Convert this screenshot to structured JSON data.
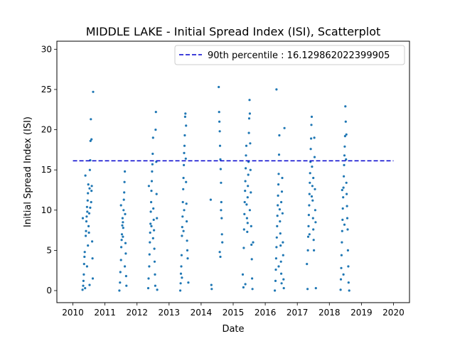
{
  "chart_data": {
    "type": "scatter",
    "title": "MIDDLE LAKE - Initial Spread Index (ISI), Scatterplot",
    "xlabel": "Date",
    "ylabel": "Initial Spread Index (ISI)",
    "xlim": [
      2009.5,
      2020.5
    ],
    "ylim": [
      -1.5,
      31.0
    ],
    "xticks": [
      2010,
      2011,
      2012,
      2013,
      2014,
      2015,
      2016,
      2017,
      2018,
      2019,
      2020
    ],
    "yticks": [
      0,
      5,
      10,
      15,
      20,
      25,
      30
    ],
    "grid": false,
    "legend": {
      "placement": "top-right",
      "entries": [
        {
          "label": "90th percentile : 16.129862022399905"
        }
      ]
    },
    "threshold_line": {
      "y": 16.129862022399905,
      "x_start": 2010.0,
      "x_end": 2020.0,
      "color": "#0000CD",
      "style": "dashed"
    },
    "marker_color": "#1F77B4",
    "line_color": "#0000CD",
    "series": [
      {
        "values_description": "one point per day of fire season",
        "points": [
          [
            2010.3,
            0.1
          ],
          [
            2010.32,
            0.6
          ],
          [
            2010.33,
            1.2
          ],
          [
            2010.34,
            2.0
          ],
          [
            2010.35,
            3.3
          ],
          [
            2010.36,
            4.2
          ],
          [
            2010.37,
            4.8
          ],
          [
            2010.38,
            0.3
          ],
          [
            2010.4,
            6.8
          ],
          [
            2010.41,
            7.4
          ],
          [
            2010.42,
            8.6
          ],
          [
            2010.43,
            9.2
          ],
          [
            2010.44,
            10.4
          ],
          [
            2010.45,
            9.8
          ],
          [
            2010.46,
            11.2
          ],
          [
            2010.47,
            12.1
          ],
          [
            2010.48,
            13.2
          ],
          [
            2010.49,
            8.0
          ],
          [
            2010.5,
            7.2
          ],
          [
            2010.51,
            9.6
          ],
          [
            2010.52,
            12.7
          ],
          [
            2010.53,
            15.0
          ],
          [
            2010.54,
            16.2
          ],
          [
            2010.55,
            18.6
          ],
          [
            2010.56,
            21.3
          ],
          [
            2010.57,
            11.0
          ],
          [
            2010.58,
            12.4
          ],
          [
            2010.59,
            13.0
          ],
          [
            2010.6,
            6.1
          ],
          [
            2010.61,
            4.0
          ],
          [
            2010.62,
            1.5
          ],
          [
            2010.63,
            24.7
          ],
          [
            2010.39,
            14.3
          ],
          [
            2010.31,
            9.0
          ],
          [
            2010.47,
            5.6
          ],
          [
            2010.54,
            10.3
          ],
          [
            2010.58,
            18.8
          ],
          [
            2010.52,
            0.7
          ],
          [
            2010.44,
            3.0
          ],
          [
            2011.45,
            0.0
          ],
          [
            2011.47,
            1.0
          ],
          [
            2011.48,
            2.3
          ],
          [
            2011.5,
            3.8
          ],
          [
            2011.51,
            5.4
          ],
          [
            2011.52,
            6.3
          ],
          [
            2011.53,
            7.0
          ],
          [
            2011.54,
            8.1
          ],
          [
            2011.55,
            9.0
          ],
          [
            2011.56,
            6.7
          ],
          [
            2011.57,
            7.8
          ],
          [
            2011.58,
            10.0
          ],
          [
            2011.59,
            11.3
          ],
          [
            2011.6,
            12.2
          ],
          [
            2011.61,
            13.5
          ],
          [
            2011.62,
            14.8
          ],
          [
            2011.63,
            9.5
          ],
          [
            2011.64,
            5.9
          ],
          [
            2011.65,
            4.6
          ],
          [
            2011.66,
            1.8
          ],
          [
            2011.67,
            0.6
          ],
          [
            2011.5,
            10.6
          ],
          [
            2011.56,
            8.5
          ],
          [
            2011.62,
            3.0
          ],
          [
            2012.35,
            0.3
          ],
          [
            2012.36,
            1.5
          ],
          [
            2012.38,
            3.0
          ],
          [
            2012.39,
            4.5
          ],
          [
            2012.4,
            6.0
          ],
          [
            2012.41,
            7.2
          ],
          [
            2012.42,
            8.3
          ],
          [
            2012.43,
            9.8
          ],
          [
            2012.44,
            11.0
          ],
          [
            2012.45,
            12.4
          ],
          [
            2012.46,
            13.6
          ],
          [
            2012.47,
            14.8
          ],
          [
            2012.48,
            15.7
          ],
          [
            2012.49,
            17.0
          ],
          [
            2012.5,
            19.0
          ],
          [
            2012.51,
            10.2
          ],
          [
            2012.52,
            8.8
          ],
          [
            2012.53,
            7.5
          ],
          [
            2012.54,
            5.2
          ],
          [
            2012.55,
            3.6
          ],
          [
            2012.56,
            2.0
          ],
          [
            2012.57,
            0.6
          ],
          [
            2012.58,
            20.0
          ],
          [
            2012.59,
            22.2
          ],
          [
            2012.6,
            16.0
          ],
          [
            2012.61,
            12.0
          ],
          [
            2012.62,
            9.0
          ],
          [
            2012.63,
            0.1
          ],
          [
            2012.37,
            13.0
          ],
          [
            2012.45,
            8.0
          ],
          [
            2012.5,
            6.5
          ],
          [
            2013.35,
            0.0
          ],
          [
            2013.36,
            0.9
          ],
          [
            2013.37,
            2.1
          ],
          [
            2013.38,
            3.0
          ],
          [
            2013.39,
            4.4
          ],
          [
            2013.4,
            6.8
          ],
          [
            2013.41,
            7.9
          ],
          [
            2013.42,
            9.2
          ],
          [
            2013.43,
            11.0
          ],
          [
            2013.44,
            12.6
          ],
          [
            2013.45,
            14.0
          ],
          [
            2013.46,
            15.6
          ],
          [
            2013.47,
            17.1
          ],
          [
            2013.48,
            18.0
          ],
          [
            2013.49,
            19.3
          ],
          [
            2013.5,
            21.6
          ],
          [
            2013.51,
            22.0
          ],
          [
            2013.52,
            16.4
          ],
          [
            2013.53,
            13.5
          ],
          [
            2013.54,
            10.8
          ],
          [
            2013.55,
            8.6
          ],
          [
            2013.56,
            6.2
          ],
          [
            2013.57,
            5.0
          ],
          [
            2013.58,
            4.0
          ],
          [
            2013.6,
            1.0
          ],
          [
            2013.4,
            1.6
          ],
          [
            2013.47,
            10.0
          ],
          [
            2013.53,
            20.5
          ],
          [
            2013.45,
            7.4
          ],
          [
            2014.3,
            11.3
          ],
          [
            2014.32,
            0.7
          ],
          [
            2014.33,
            0.2
          ],
          [
            2014.55,
            25.3
          ],
          [
            2014.56,
            22.2
          ],
          [
            2014.57,
            21.0
          ],
          [
            2014.58,
            19.8
          ],
          [
            2014.59,
            18.0
          ],
          [
            2014.6,
            16.3
          ],
          [
            2014.61,
            15.1
          ],
          [
            2014.62,
            13.4
          ],
          [
            2014.63,
            11.0
          ],
          [
            2014.64,
            9.0
          ],
          [
            2014.65,
            7.0
          ],
          [
            2014.66,
            6.0
          ],
          [
            2014.58,
            4.8
          ],
          [
            2014.6,
            4.2
          ],
          [
            2014.62,
            10.0
          ],
          [
            2015.3,
            2.0
          ],
          [
            2015.32,
            0.4
          ],
          [
            2015.33,
            5.3
          ],
          [
            2015.34,
            7.6
          ],
          [
            2015.35,
            9.5
          ],
          [
            2015.36,
            11.0
          ],
          [
            2015.37,
            12.4
          ],
          [
            2015.38,
            13.6
          ],
          [
            2015.39,
            15.2
          ],
          [
            2015.4,
            16.8
          ],
          [
            2015.41,
            18.0
          ],
          [
            2015.42,
            10.7
          ],
          [
            2015.43,
            9.0
          ],
          [
            2015.44,
            7.3
          ],
          [
            2015.45,
            11.6
          ],
          [
            2015.46,
            13.0
          ],
          [
            2015.47,
            14.4
          ],
          [
            2015.48,
            16.0
          ],
          [
            2015.49,
            19.6
          ],
          [
            2015.5,
            21.4
          ],
          [
            2015.51,
            23.7
          ],
          [
            2015.52,
            22.0
          ],
          [
            2015.53,
            18.3
          ],
          [
            2015.54,
            15.0
          ],
          [
            2015.55,
            12.2
          ],
          [
            2015.56,
            8.0
          ],
          [
            2015.57,
            5.7
          ],
          [
            2015.58,
            3.9
          ],
          [
            2015.59,
            1.5
          ],
          [
            2015.6,
            0.2
          ],
          [
            2015.38,
            0.8
          ],
          [
            2015.45,
            8.4
          ],
          [
            2015.52,
            10.0
          ],
          [
            2015.62,
            6.0
          ],
          [
            2016.3,
            0.0
          ],
          [
            2016.32,
            1.2
          ],
          [
            2016.33,
            2.6
          ],
          [
            2016.34,
            4.0
          ],
          [
            2016.35,
            5.4
          ],
          [
            2016.36,
            6.6
          ],
          [
            2016.37,
            8.0
          ],
          [
            2016.38,
            9.3
          ],
          [
            2016.39,
            10.6
          ],
          [
            2016.4,
            11.8
          ],
          [
            2016.41,
            13.2
          ],
          [
            2016.42,
            14.5
          ],
          [
            2016.43,
            16.9
          ],
          [
            2016.44,
            19.3
          ],
          [
            2016.45,
            10.1
          ],
          [
            2016.46,
            8.6
          ],
          [
            2016.47,
            7.1
          ],
          [
            2016.48,
            5.6
          ],
          [
            2016.49,
            3.6
          ],
          [
            2016.5,
            2.1
          ],
          [
            2016.51,
            0.9
          ],
          [
            2016.52,
            12.3
          ],
          [
            2016.53,
            14.0
          ],
          [
            2016.54,
            9.6
          ],
          [
            2016.55,
            6.0
          ],
          [
            2016.56,
            4.4
          ],
          [
            2016.57,
            1.4
          ],
          [
            2016.58,
            0.3
          ],
          [
            2016.6,
            20.2
          ],
          [
            2016.35,
            25.0
          ],
          [
            2016.42,
            3.0
          ],
          [
            2016.5,
            11.0
          ],
          [
            2017.3,
            3.3
          ],
          [
            2017.32,
            0.2
          ],
          [
            2017.33,
            5.0
          ],
          [
            2017.34,
            6.7
          ],
          [
            2017.35,
            8.0
          ],
          [
            2017.36,
            9.4
          ],
          [
            2017.37,
            10.6
          ],
          [
            2017.38,
            12.0
          ],
          [
            2017.39,
            13.4
          ],
          [
            2017.4,
            14.6
          ],
          [
            2017.41,
            16.0
          ],
          [
            2017.42,
            17.6
          ],
          [
            2017.43,
            18.9
          ],
          [
            2017.44,
            20.6
          ],
          [
            2017.45,
            21.6
          ],
          [
            2017.46,
            15.4
          ],
          [
            2017.47,
            13.0
          ],
          [
            2017.48,
            11.2
          ],
          [
            2017.49,
            9.0
          ],
          [
            2017.5,
            7.6
          ],
          [
            2017.51,
            6.3
          ],
          [
            2017.52,
            5.0
          ],
          [
            2017.53,
            19.0
          ],
          [
            2017.54,
            16.6
          ],
          [
            2017.55,
            12.6
          ],
          [
            2017.56,
            10.0
          ],
          [
            2017.57,
            8.5
          ],
          [
            2017.58,
            0.3
          ],
          [
            2017.38,
            7.0
          ],
          [
            2017.45,
            11.7
          ],
          [
            2017.5,
            14.0
          ],
          [
            2018.35,
            0.1
          ],
          [
            2018.36,
            1.4
          ],
          [
            2018.37,
            2.8
          ],
          [
            2018.38,
            4.4
          ],
          [
            2018.39,
            6.0
          ],
          [
            2018.4,
            7.4
          ],
          [
            2018.41,
            8.8
          ],
          [
            2018.42,
            10.2
          ],
          [
            2018.43,
            11.6
          ],
          [
            2018.44,
            12.8
          ],
          [
            2018.45,
            14.2
          ],
          [
            2018.46,
            15.6
          ],
          [
            2018.47,
            16.8
          ],
          [
            2018.48,
            17.9
          ],
          [
            2018.49,
            19.2
          ],
          [
            2018.5,
            22.9
          ],
          [
            2018.51,
            21.0
          ],
          [
            2018.52,
            16.3
          ],
          [
            2018.53,
            13.4
          ],
          [
            2018.54,
            12.0
          ],
          [
            2018.55,
            10.5
          ],
          [
            2018.56,
            9.0
          ],
          [
            2018.57,
            7.6
          ],
          [
            2018.58,
            5.0
          ],
          [
            2018.59,
            3.0
          ],
          [
            2018.6,
            1.0
          ],
          [
            2018.62,
            0.0
          ],
          [
            2018.4,
            12.5
          ],
          [
            2018.47,
            8.2
          ],
          [
            2018.53,
            19.4
          ],
          [
            2018.44,
            2.0
          ]
        ]
      }
    ]
  }
}
